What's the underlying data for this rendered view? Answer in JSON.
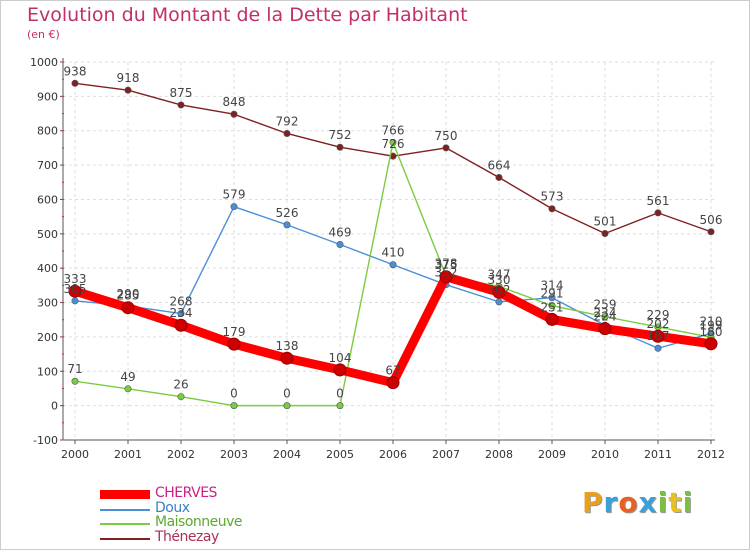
{
  "title": "Evolution du Montant de la Dette par Habitant",
  "subtitle": "(en €)",
  "logo": {
    "letters": [
      "P",
      "r",
      "o",
      "x",
      "i",
      "t",
      "i"
    ],
    "colors": [
      "#e8a020",
      "#3aa0d8",
      "#e86020",
      "#3aa0d8",
      "#7ac040",
      "#e8c020",
      "#7ac040"
    ]
  },
  "chart_data": {
    "type": "line",
    "x": [
      "2000",
      "2001",
      "2002",
      "2003",
      "2004",
      "2005",
      "2006",
      "2007",
      "2008",
      "2009",
      "2010",
      "2011",
      "2012"
    ],
    "ylim": [
      -100,
      1000
    ],
    "yticks": [
      "-100",
      "0",
      "100",
      "200",
      "300",
      "400",
      "500",
      "600",
      "700",
      "800",
      "900",
      "1000"
    ],
    "grid": true,
    "legend_position": "bottom-left",
    "series": [
      {
        "name": "CHERVES",
        "color": "#ff0000",
        "values": [
          333,
          285,
          234,
          179,
          138,
          104,
          67,
          375,
          330,
          251,
          224,
          202,
          180
        ],
        "labels": [
          "333",
          "285",
          "234",
          "179",
          "138",
          "104",
          "67",
          "375",
          "330",
          "251",
          "224",
          "202",
          "180"
        ]
      },
      {
        "name": "Doux",
        "color": "#4a90d9",
        "values": [
          305,
          290,
          268,
          579,
          526,
          469,
          410,
          352,
          302,
          314,
          234,
          167,
          210
        ],
        "labels": [
          "305",
          "290",
          "268",
          "579",
          "526",
          "469",
          "410",
          "352",
          "302",
          "314",
          "234",
          "167",
          "210"
        ]
      },
      {
        "name": "Maisonneuve",
        "color": "#7acc40",
        "values": [
          71,
          49,
          26,
          0,
          0,
          0,
          766,
          378,
          347,
          291,
          259,
          229,
          199
        ],
        "labels": [
          "71",
          "49",
          "26",
          "0",
          "0",
          "0",
          "766",
          "378",
          "347",
          "291",
          "259",
          "229",
          "199"
        ]
      },
      {
        "name": "Thénezay",
        "color": "#802020",
        "values": [
          938,
          918,
          875,
          848,
          792,
          752,
          726,
          750,
          664,
          573,
          501,
          561,
          506
        ],
        "labels": [
          "938",
          "918",
          "875",
          "848",
          "792",
          "752",
          "726",
          "750",
          "664",
          "573",
          "501",
          "561",
          "506"
        ]
      }
    ]
  }
}
